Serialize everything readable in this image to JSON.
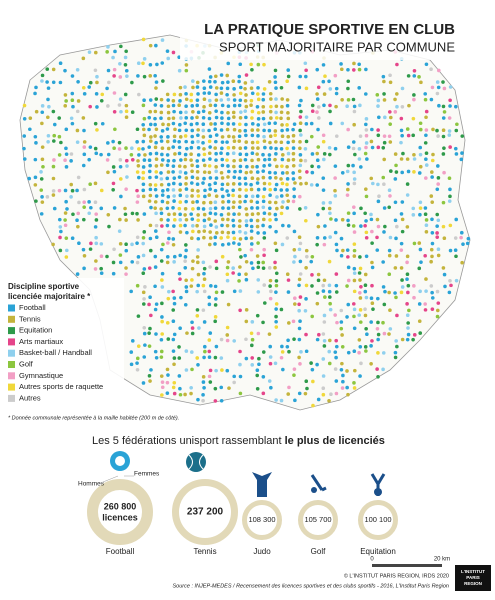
{
  "header": {
    "title": "LA PRATIQUE SPORTIVE EN CLUB",
    "subtitle": "SPORT MAJORITAIRE PAR COMMUNE"
  },
  "legend": {
    "title": [
      "Discipline sportive",
      "licenciée majoritaire *"
    ],
    "items": [
      {
        "label": "Football",
        "color": "#2aa3d6"
      },
      {
        "label": "Tennis",
        "color": "#c4b43c"
      },
      {
        "label": "Equitation",
        "color": "#2e9a4a"
      },
      {
        "label": "Arts martiaux",
        "color": "#e5458a"
      },
      {
        "label": "Basket-ball / Handball",
        "color": "#8fd0ee"
      },
      {
        "label": "Golf",
        "color": "#8cc63f"
      },
      {
        "label": "Gymnastique",
        "color": "#f29fc5"
      },
      {
        "label": "Autres sports de raquette",
        "color": "#f0d83a"
      },
      {
        "label": "Autres",
        "color": "#cccccc"
      }
    ]
  },
  "footnote": "* Donnée communale représentée à la maille habitée (200 m de côté).",
  "federations": {
    "heading": "Les 5 fédérations unisport rassemblant ",
    "heading_bold": "le plus de licenciés",
    "men": "Hommes",
    "women": "Femmes",
    "items": [
      {
        "name": "Football",
        "value": "260 800",
        "unit": "licences"
      },
      {
        "name": "Tennis",
        "value": "237 200"
      },
      {
        "name": "Judo",
        "value": "108 300"
      },
      {
        "name": "Golf",
        "value": "105 700"
      },
      {
        "name": "Equitation",
        "value": "100 100"
      }
    ]
  },
  "scale": {
    "start": "0",
    "end": "20 km"
  },
  "copyright": "© L'INSTITUT PARIS REGION, IRDS 2020",
  "source": "Source : INJEP-MEDES / Recensement des licences sportives et des clubs sportifs - 2016, L'Institut Paris Region",
  "logo": [
    "L'INSTITUT",
    "PARIS",
    "REGION"
  ]
}
